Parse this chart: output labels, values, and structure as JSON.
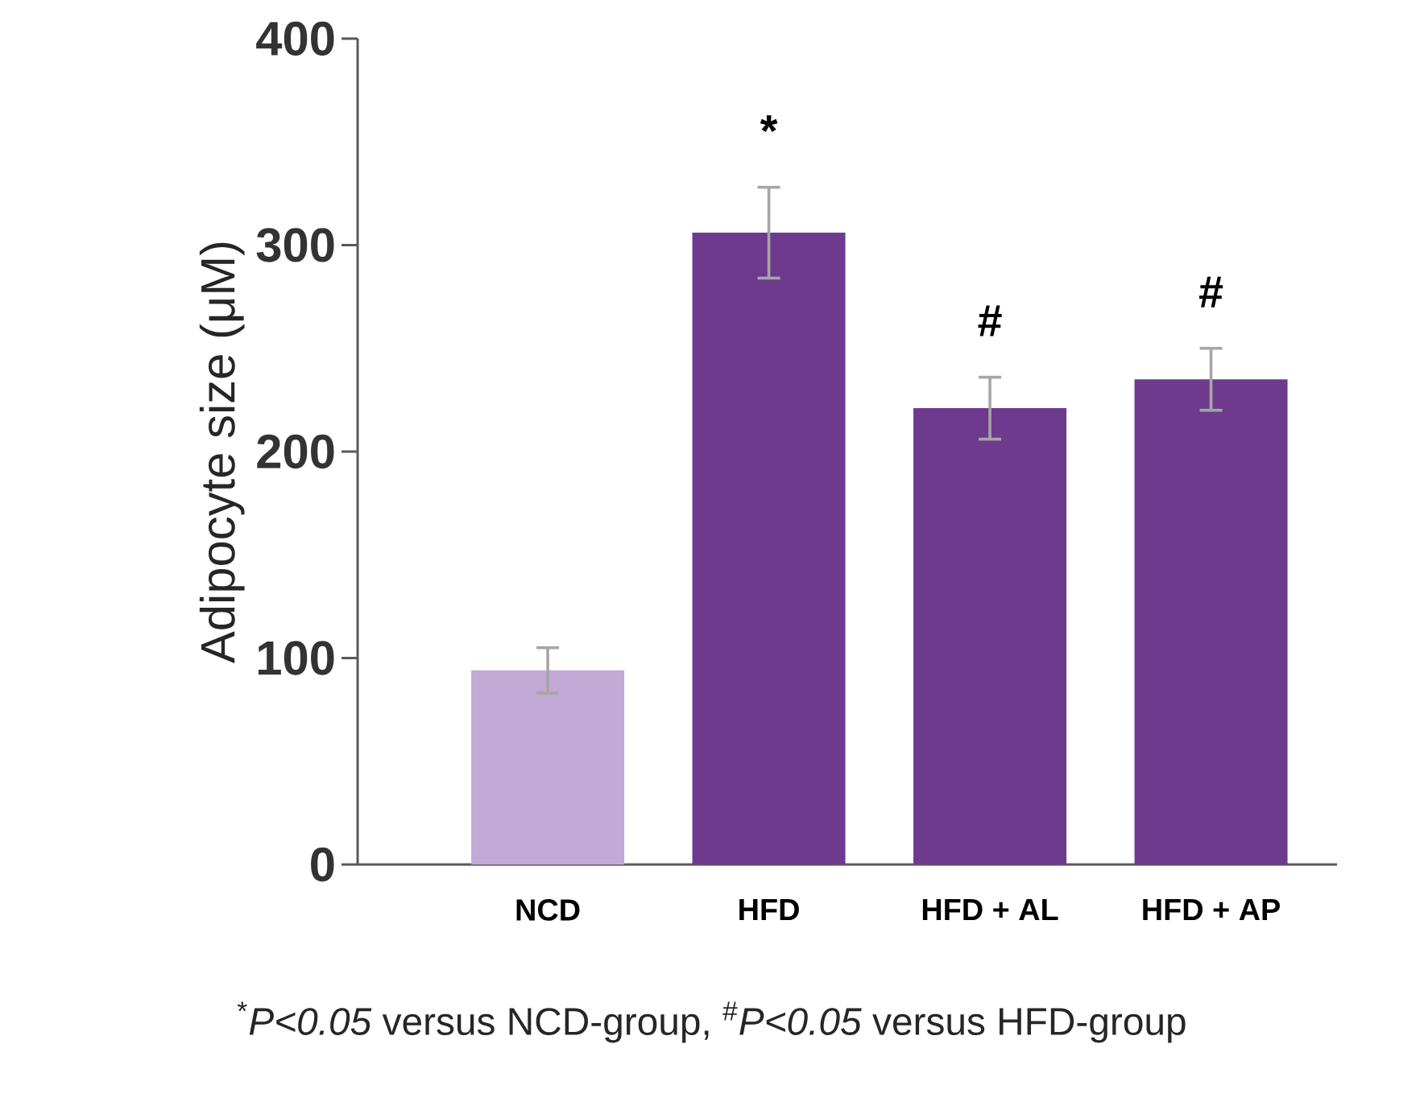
{
  "chart_data": {
    "type": "bar",
    "ylabel": "Adipocyte size (μM)",
    "categories": [
      "NCD",
      "HFD",
      "HFD + AL",
      "HFD + AP"
    ],
    "values": [
      94,
      306,
      221,
      235
    ],
    "colors": [
      "#c3a9d6",
      "#6e3a8e",
      "#6e3a8e",
      "#6e3a8e"
    ],
    "errors": [
      11,
      22,
      15,
      15
    ],
    "value_labels": [
      null,
      "*",
      "#",
      "#"
    ],
    "ylim": [
      0,
      400
    ],
    "yticks": [
      0,
      100,
      200,
      300,
      400
    ],
    "grid": false,
    "annotations": [
      "$^{*}$*P<0.05* versus NCD-group, $^{#}$*P<0.05* versus HFD-group"
    ]
  }
}
